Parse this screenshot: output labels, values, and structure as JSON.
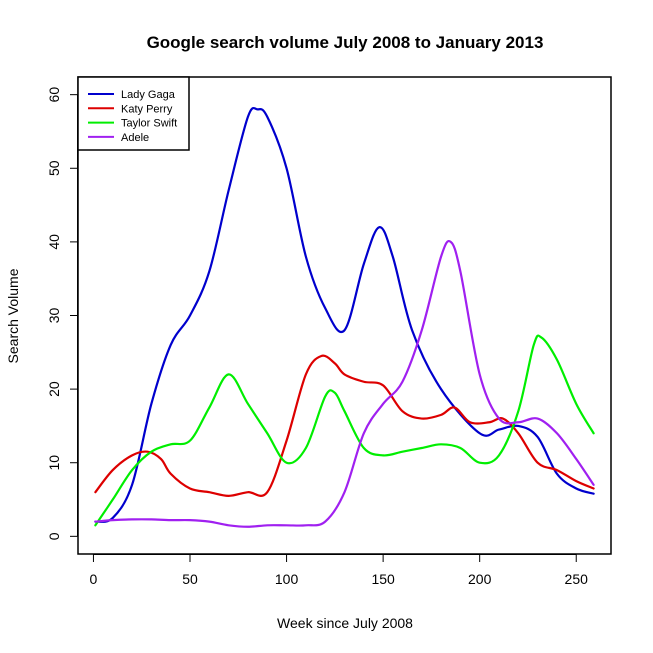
{
  "chart_data": {
    "type": "line",
    "title": "Google search volume July 2008 to January 2013",
    "xlabel": "Week since July 2008",
    "ylabel": "Search Volume",
    "xlim": [
      -8,
      268
    ],
    "ylim": [
      -2.4,
      62.4
    ],
    "xticks": [
      0,
      50,
      100,
      150,
      200,
      250
    ],
    "yticks": [
      0,
      10,
      20,
      30,
      40,
      50,
      60
    ],
    "grid": false,
    "legend_position": "top-left",
    "series": [
      {
        "name": "Lady Gaga",
        "color": "#0000CD",
        "x": [
          1,
          10,
          20,
          30,
          40,
          50,
          60,
          70,
          80,
          85,
          90,
          100,
          110,
          120,
          130,
          140,
          148,
          155,
          165,
          180,
          200,
          210,
          220,
          230,
          240,
          250,
          259
        ],
        "y": [
          2,
          2.5,
          7,
          18,
          26,
          30,
          36,
          47,
          57,
          58,
          57,
          50,
          38,
          31,
          28,
          37,
          42,
          38,
          28,
          20,
          14,
          14.5,
          15,
          13.5,
          8.5,
          6.5,
          5.8
        ]
      },
      {
        "name": "Katy Perry",
        "color": "#DD0000",
        "x": [
          1,
          10,
          20,
          28,
          35,
          40,
          50,
          60,
          70,
          80,
          90,
          100,
          110,
          118,
          125,
          130,
          140,
          150,
          160,
          170,
          180,
          187,
          195,
          205,
          212,
          220,
          230,
          240,
          250,
          259
        ],
        "y": [
          6,
          9,
          11,
          11.5,
          10.5,
          8.5,
          6.5,
          6,
          5.5,
          6,
          6,
          13,
          22,
          24.5,
          23.5,
          22,
          21,
          20.5,
          17,
          16,
          16.5,
          17.5,
          15.5,
          15.5,
          16,
          14,
          10,
          9,
          7.5,
          6.5
        ]
      },
      {
        "name": "Taylor Swift",
        "color": "#00EE00",
        "x": [
          1,
          10,
          20,
          30,
          40,
          50,
          60,
          70,
          80,
          90,
          100,
          110,
          120,
          125,
          130,
          140,
          150,
          160,
          170,
          180,
          190,
          200,
          210,
          220,
          228,
          232,
          240,
          250,
          259
        ],
        "y": [
          1.5,
          5,
          9,
          11.5,
          12.5,
          13,
          17.5,
          22,
          18,
          14,
          10,
          12,
          19,
          19.5,
          17,
          12,
          11,
          11.5,
          12,
          12.5,
          12,
          10,
          11,
          17,
          26,
          27,
          24,
          18,
          14
        ]
      },
      {
        "name": "Adele",
        "color": "#A020F0",
        "x": [
          1,
          10,
          20,
          30,
          40,
          50,
          60,
          70,
          80,
          90,
          100,
          110,
          120,
          130,
          140,
          150,
          160,
          170,
          180,
          185,
          190,
          200,
          210,
          220,
          230,
          240,
          250,
          259
        ],
        "y": [
          2,
          2.2,
          2.3,
          2.3,
          2.2,
          2.2,
          2,
          1.5,
          1.3,
          1.5,
          1.5,
          1.5,
          2,
          6,
          14,
          18,
          21,
          28,
          38,
          40,
          36,
          22,
          16,
          15.5,
          16,
          14,
          10.5,
          7
        ]
      }
    ]
  }
}
